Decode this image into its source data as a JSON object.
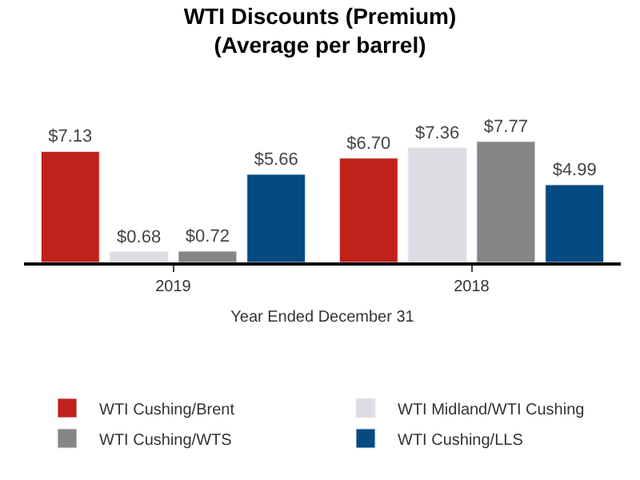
{
  "chart_data": {
    "type": "bar",
    "title": "WTI Discounts (Premium)\n(Average per barrel)",
    "xlabel": "Year Ended December 31",
    "categories": [
      "2019",
      "2018"
    ],
    "series": [
      {
        "name": "WTI Cushing/Brent",
        "color": "#c0211b",
        "values": [
          7.13,
          6.7
        ],
        "value_labels": [
          "$7.13",
          "$6.70"
        ]
      },
      {
        "name": "WTI Midland/WTI Cushing",
        "color": "#dcdde2",
        "values": [
          0.68,
          7.36
        ],
        "value_labels": [
          "$0.68",
          "$7.36"
        ]
      },
      {
        "name": "WTI Cushing/WTS",
        "color": "#858585",
        "values": [
          0.72,
          7.77
        ],
        "value_labels": [
          "$0.72",
          "$7.77"
        ]
      },
      {
        "name": "WTI Cushing/LLS",
        "color": "#054a80",
        "values": [
          5.66,
          4.99
        ],
        "value_labels": [
          "$5.66",
          "$4.99"
        ]
      }
    ],
    "legend": "bottom"
  }
}
